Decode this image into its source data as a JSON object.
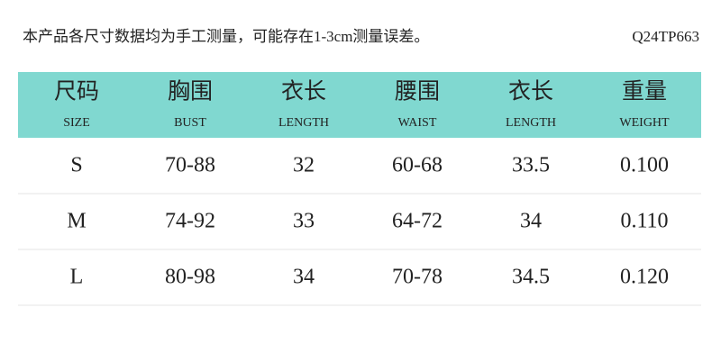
{
  "header": {
    "note": "本产品各尺寸数据均为手工测量，可能存在1-3cm测量误差。",
    "code": "Q24TP663"
  },
  "table": {
    "columns": [
      {
        "cn": "尺码",
        "en": "SIZE"
      },
      {
        "cn": "胸围",
        "en": "BUST"
      },
      {
        "cn": "衣长",
        "en": "LENGTH"
      },
      {
        "cn": "腰围",
        "en": "WAIST"
      },
      {
        "cn": "衣长",
        "en": "LENGTH"
      },
      {
        "cn": "重量",
        "en": "WEIGHT"
      }
    ],
    "rows": [
      [
        "S",
        "70-88",
        "32",
        "60-68",
        "33.5",
        "0.100"
      ],
      [
        "M",
        "74-92",
        "33",
        "64-72",
        "34",
        "0.110"
      ],
      [
        "L",
        "80-98",
        "34",
        "70-78",
        "34.5",
        "0.120"
      ]
    ]
  }
}
